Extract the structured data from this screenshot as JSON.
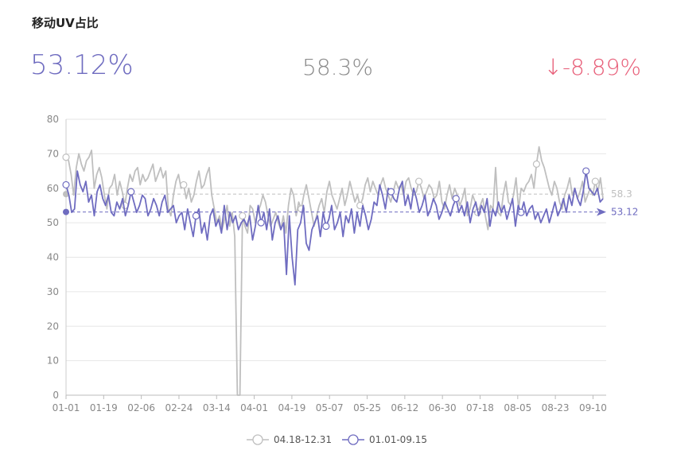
{
  "title": "移动UV占比",
  "kpi": {
    "current": "53.12%",
    "previous": "58.3%",
    "change": "↓-8.89%"
  },
  "colors": {
    "current": "#6f6cc0",
    "previous": "#bfbfbf",
    "negative": "#e8607a"
  },
  "chart_data": {
    "type": "line",
    "ylim": [
      0,
      80
    ],
    "yticks": [
      "0",
      "10",
      "20",
      "30",
      "40",
      "50",
      "60",
      "70",
      "80"
    ],
    "xticks": [
      "01-01",
      "01-19",
      "02-06",
      "02-24",
      "03-14",
      "04-01",
      "04-19",
      "05-07",
      "05-25",
      "06-12",
      "06-30",
      "07-18",
      "08-05",
      "08-23",
      "09-10"
    ],
    "grid": true,
    "legend_position": "bottom",
    "series": [
      {
        "name": "04.18-12.31",
        "key": "previous",
        "average": 58.3,
        "average_label": "58.3",
        "values": [
          69,
          68,
          64,
          58,
          66,
          70,
          67,
          65,
          68,
          69,
          71,
          60,
          64,
          66,
          63,
          58,
          54,
          60,
          61,
          64,
          58,
          62,
          59,
          55,
          60,
          64,
          62,
          65,
          66,
          61,
          64,
          62,
          63,
          65,
          67,
          62,
          64,
          66,
          63,
          65,
          54,
          52,
          58,
          62,
          64,
          60,
          61,
          57,
          60,
          56,
          58,
          62,
          65,
          60,
          61,
          64,
          66,
          58,
          54,
          50,
          52,
          48,
          51,
          55,
          49,
          53,
          46,
          0,
          0,
          52,
          49,
          47,
          55,
          54,
          50,
          53,
          55,
          58,
          56,
          52,
          49,
          51,
          53,
          50,
          48,
          52,
          47,
          55,
          60,
          58,
          52,
          56,
          54,
          58,
          61,
          57,
          53,
          49,
          52,
          55,
          57,
          53,
          59,
          62,
          58,
          56,
          54,
          57,
          60,
          55,
          58,
          62,
          59,
          56,
          58,
          55,
          57,
          61,
          63,
          59,
          62,
          60,
          58,
          61,
          63,
          60,
          58,
          56,
          59,
          62,
          60,
          61,
          58,
          62,
          63,
          60,
          58,
          59,
          62,
          60,
          57,
          59,
          61,
          60,
          57,
          58,
          62,
          56,
          54,
          58,
          61,
          57,
          60,
          58,
          55,
          57,
          60,
          52,
          54,
          58,
          56,
          53,
          55,
          57,
          52,
          48,
          55,
          54,
          66,
          53,
          52,
          58,
          62,
          56,
          55,
          58,
          63,
          54,
          60,
          59,
          61,
          62,
          64,
          60,
          67,
          72,
          68,
          66,
          63,
          60,
          58,
          62,
          60,
          56,
          54,
          58,
          60,
          63,
          58,
          60,
          57,
          59,
          62,
          56,
          58,
          60,
          58,
          62,
          59,
          63,
          57
        ]
      },
      {
        "name": "01.01-09.15",
        "key": "current",
        "average": 53.12,
        "average_label": "53.12",
        "values": [
          61,
          58,
          53,
          54,
          65,
          61,
          59,
          62,
          56,
          58,
          52,
          59,
          61,
          57,
          55,
          58,
          53,
          52,
          56,
          54,
          57,
          52,
          55,
          59,
          56,
          53,
          55,
          58,
          57,
          52,
          54,
          57,
          55,
          52,
          56,
          58,
          53,
          54,
          55,
          50,
          52,
          53,
          48,
          54,
          50,
          46,
          52,
          54,
          47,
          50,
          45,
          52,
          54,
          49,
          51,
          47,
          55,
          48,
          53,
          50,
          52,
          48,
          50,
          51,
          49,
          52,
          45,
          49,
          55,
          50,
          53,
          48,
          54,
          45,
          50,
          52,
          48,
          50,
          35,
          52,
          40,
          32,
          48,
          50,
          55,
          44,
          42,
          48,
          50,
          52,
          46,
          53,
          49,
          51,
          55,
          48,
          50,
          53,
          46,
          52,
          50,
          54,
          47,
          53,
          49,
          55,
          52,
          48,
          51,
          56,
          55,
          61,
          58,
          54,
          60,
          59,
          57,
          56,
          60,
          62,
          55,
          58,
          54,
          60,
          57,
          53,
          55,
          58,
          52,
          54,
          57,
          55,
          51,
          53,
          56,
          54,
          52,
          55,
          57,
          53,
          55,
          52,
          56,
          50,
          54,
          56,
          52,
          55,
          53,
          57,
          49,
          54,
          52,
          56,
          53,
          55,
          51,
          54,
          57,
          49,
          55,
          53,
          56,
          52,
          54,
          55,
          51,
          53,
          50,
          52,
          54,
          50,
          53,
          56,
          52,
          54,
          57,
          53,
          58,
          55,
          60,
          57,
          55,
          59,
          65,
          60,
          59,
          58,
          60,
          56,
          57
        ]
      }
    ]
  }
}
